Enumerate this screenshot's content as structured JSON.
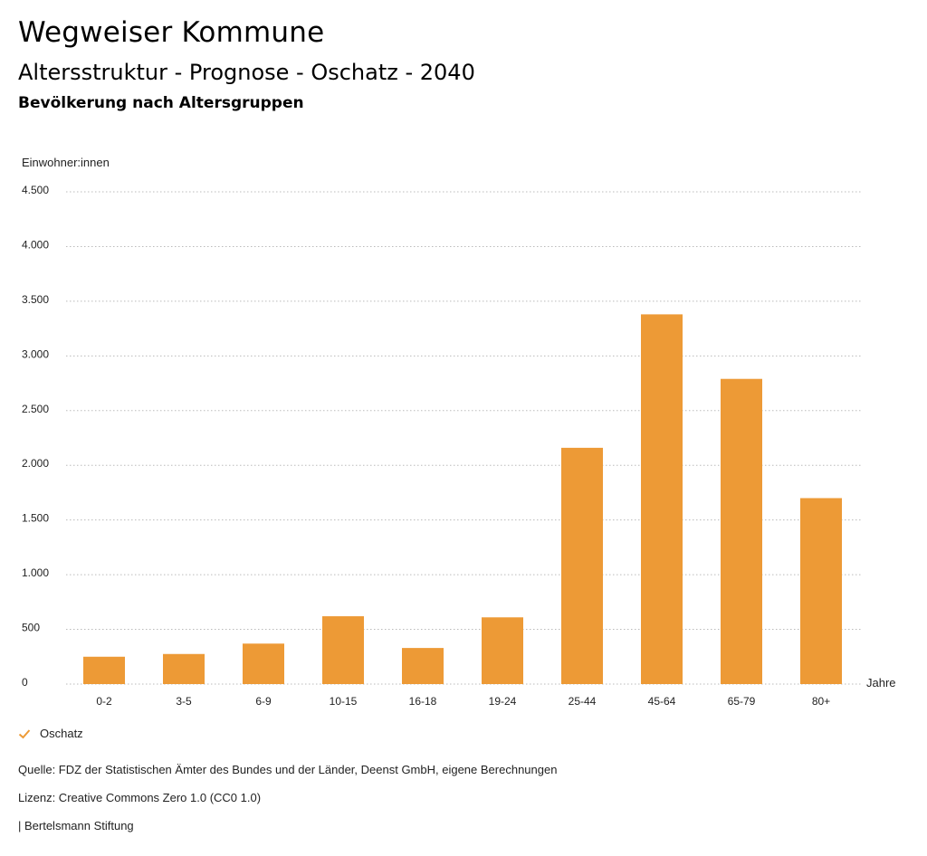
{
  "header": {
    "title": "Wegweiser Kommune",
    "subtitle": "Altersstruktur - Prognose - Oschatz - 2040",
    "section": "Bevölkerung nach Altersgruppen"
  },
  "colors": {
    "bar": "#ED9A36",
    "grid": "#bbbbbb"
  },
  "chart_data": {
    "type": "bar",
    "title": "Bevölkerung nach Altersgruppen",
    "ylabel": "Einwohner:innen",
    "xlabel": "Jahre",
    "ylim": [
      0,
      4500
    ],
    "yticks": [
      0,
      500,
      1000,
      1500,
      2000,
      2500,
      3000,
      3500,
      4000,
      4500
    ],
    "ytick_labels": [
      "0",
      "500",
      "1.000",
      "1.500",
      "2.000",
      "2.500",
      "3.000",
      "3.500",
      "4.000",
      "4.500"
    ],
    "grid": true,
    "categories": [
      "0-2",
      "3-5",
      "6-9",
      "10-15",
      "16-18",
      "19-24",
      "25-44",
      "45-64",
      "65-79",
      "80+"
    ],
    "series": [
      {
        "name": "Oschatz",
        "values": [
          250,
          275,
          370,
          620,
          330,
          610,
          2160,
          3380,
          2790,
          1700
        ]
      }
    ],
    "legend": "bottom-left"
  },
  "footer": {
    "source": "Quelle: FDZ der Statistischen Ämter des Bundes und der Länder, Deenst GmbH, eigene Berechnungen",
    "license": "Lizenz: Creative Commons Zero 1.0 (CC0 1.0)",
    "publisher": "| Bertelsmann Stiftung"
  }
}
